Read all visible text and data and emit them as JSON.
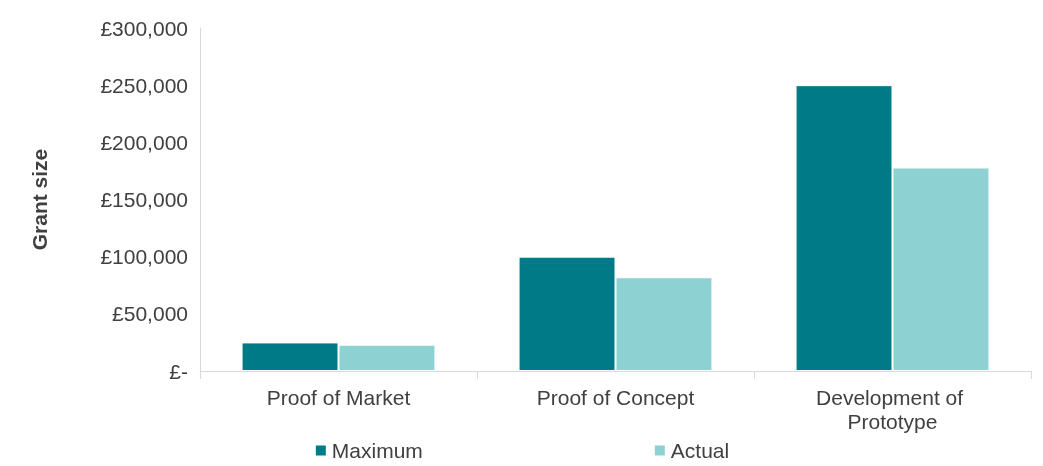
{
  "chart_data": {
    "type": "bar",
    "ylabel": "Grant size",
    "categories": [
      "Proof of Market",
      "Proof of Concept",
      "Development of Prototype"
    ],
    "series": [
      {
        "name": "Maximum",
        "color": "#007a87",
        "values": [
          25000,
          100000,
          250000
        ]
      },
      {
        "name": "Actual",
        "color": "#8ed1d2",
        "values": [
          23000,
          82000,
          178000
        ]
      }
    ],
    "ylim": [
      0,
      300000
    ],
    "yticks": [
      {
        "value": 0,
        "label": "£-"
      },
      {
        "value": 50000,
        "label": "£50,000"
      },
      {
        "value": 100000,
        "label": "£100,000"
      },
      {
        "value": 150000,
        "label": "£150,000"
      },
      {
        "value": 200000,
        "label": "£200,000"
      },
      {
        "value": 250000,
        "label": "£250,000"
      },
      {
        "value": 300000,
        "label": "£300,000"
      }
    ],
    "grid": false,
    "legend": "bottom"
  }
}
